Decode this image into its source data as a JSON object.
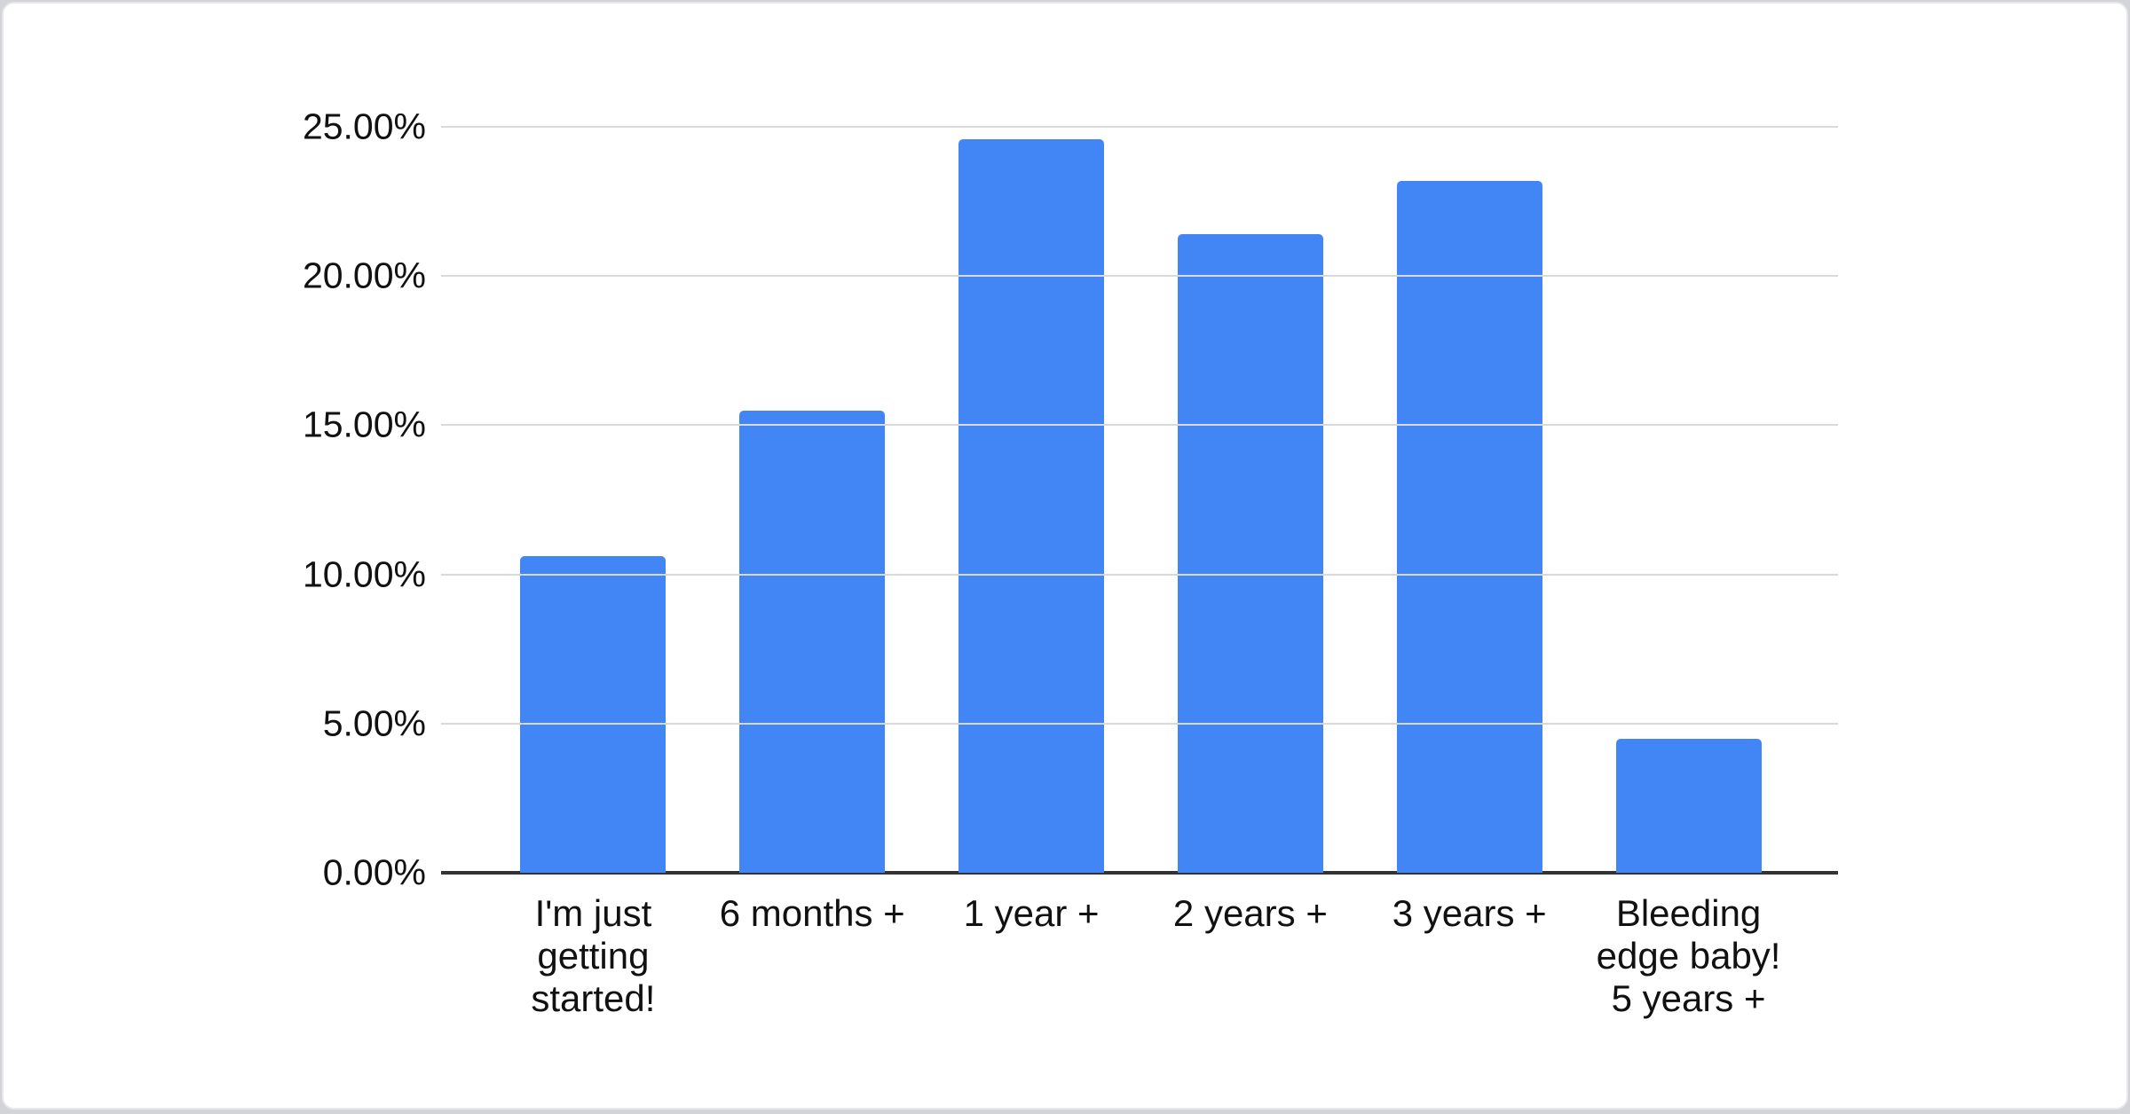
{
  "chart_data": {
    "type": "bar",
    "title": "",
    "xlabel": "",
    "ylabel": "",
    "legend": "none",
    "grid": true,
    "ylim": [
      0,
      25
    ],
    "categories": [
      "I'm just getting started!",
      "6 months +",
      "1 year +",
      "2 years +",
      "3 years +",
      "Bleeding edge baby! 5 years +"
    ],
    "category_display": [
      "I'm just\ngetting\nstarted!",
      "6 months +",
      "1 year +",
      "2 years +",
      "3 years +",
      "Bleeding\nedge baby!\n5 years +"
    ],
    "values": [
      10.6,
      15.5,
      24.6,
      21.4,
      23.2,
      4.5
    ],
    "value_suffix": "%",
    "yticks": [
      {
        "value": 0,
        "label": "0.00%"
      },
      {
        "value": 5,
        "label": "5.00%"
      },
      {
        "value": 10,
        "label": "10.00%"
      },
      {
        "value": 15,
        "label": "15.00%"
      },
      {
        "value": 20,
        "label": "20.00%"
      },
      {
        "value": 25,
        "label": "25.00%"
      }
    ],
    "colors": {
      "bar": "#4285f4",
      "gridline": "#d9d9d9",
      "axis": "#333333",
      "label": "#111111"
    }
  }
}
